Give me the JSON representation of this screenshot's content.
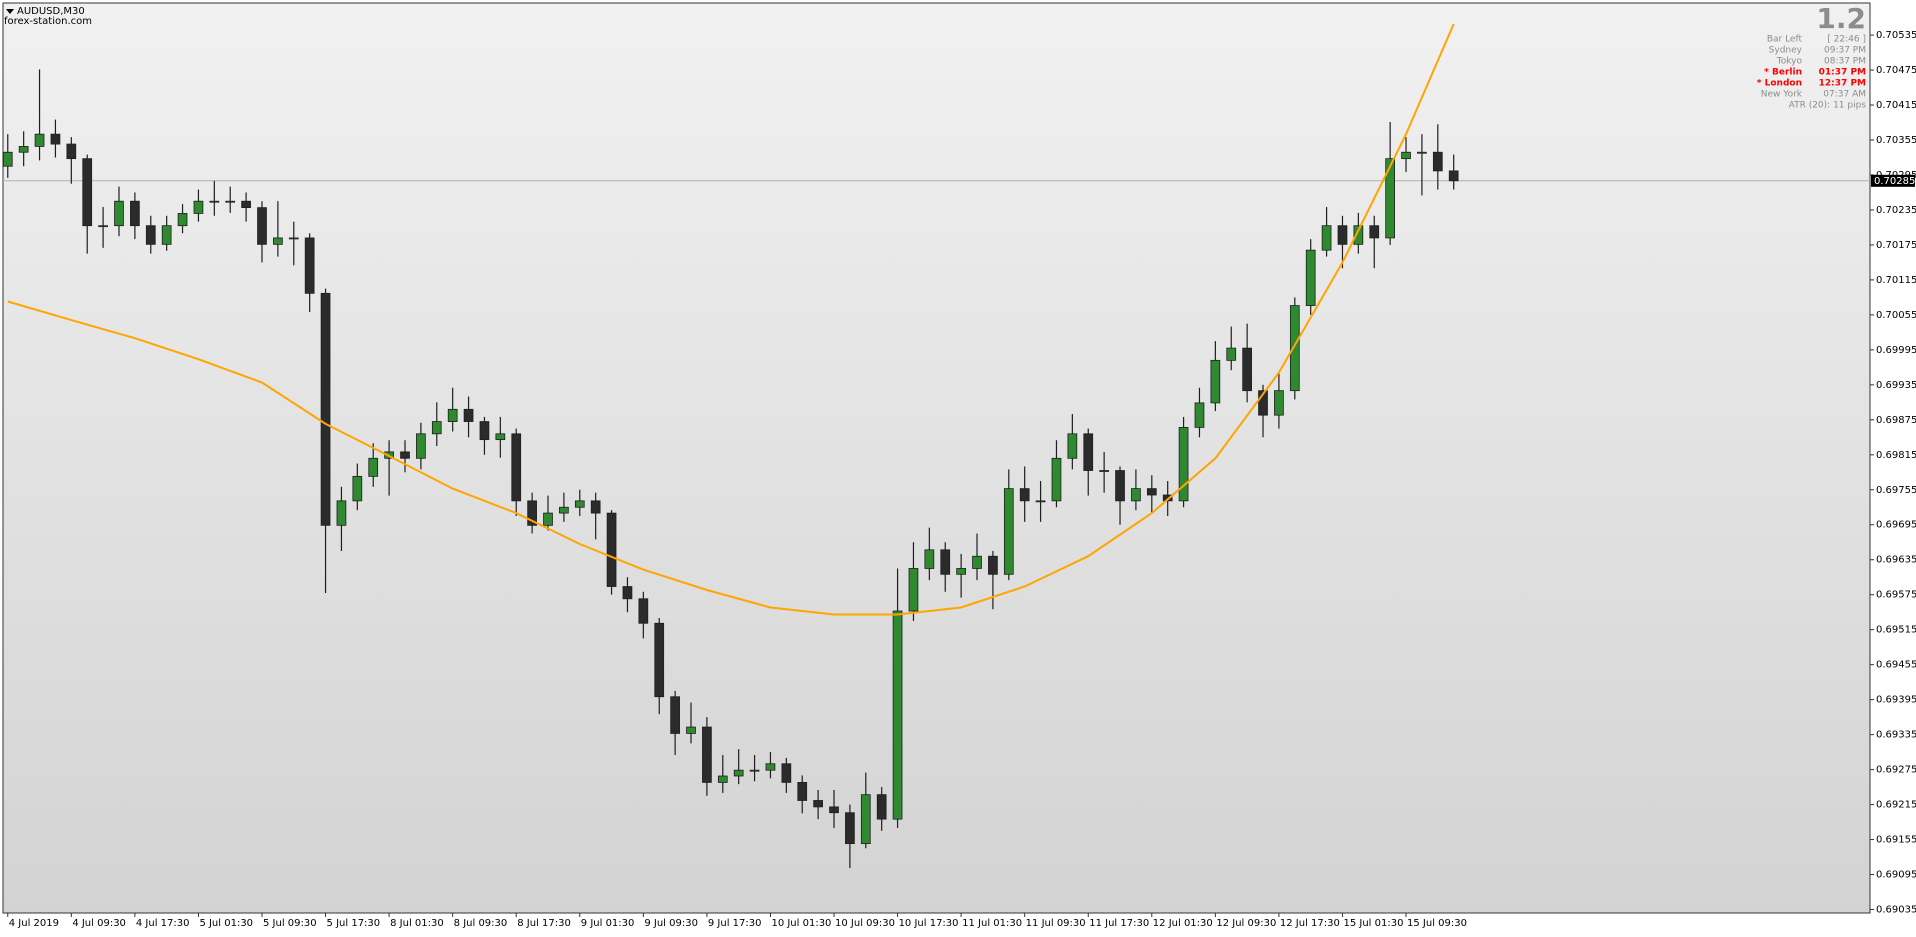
{
  "chart_data": {
    "type": "candlestick",
    "title": "AUDUSD,M30",
    "subtitle": "forex-station.com",
    "bull_color": "#2f8a2f",
    "bear_color": "#2b2b2b",
    "open": [
      0.7031,
      0.70334,
      0.70344,
      0.70365,
      0.70348,
      0.70323,
      0.70208,
      0.70208,
      0.7025,
      0.70208,
      0.70176,
      0.70208,
      0.70229,
      0.7025,
      0.7025,
      0.7025,
      0.70239,
      0.70176,
      0.70187,
      0.70187,
      0.70092,
      0.69694,
      0.69736,
      0.69778,
      0.69809,
      0.6982,
      0.69809,
      0.69851,
      0.69872,
      0.69893,
      0.69872,
      0.69841,
      0.69851,
      0.69736,
      0.69694,
      0.69715,
      0.69725,
      0.69736,
      0.69715,
      0.69589,
      0.69568,
      0.69526,
      0.694,
      0.69337,
      0.69348,
      0.69253,
      0.69264,
      0.69274,
      0.69274,
      0.69285,
      0.69253,
      0.69222,
      0.69211,
      0.69201,
      0.69148,
      0.69232,
      0.6919,
      0.69547,
      0.6962,
      0.69652,
      0.6961,
      0.6962,
      0.69641,
      0.6961,
      0.69757,
      0.69736,
      0.69736,
      0.69809,
      0.69851,
      0.69788,
      0.69788,
      0.69736,
      0.69757,
      0.69746,
      0.69736,
      0.69862,
      0.69904,
      0.69977,
      0.69998,
      0.69925,
      0.69883,
      0.69925,
      0.70071,
      0.70166,
      0.70208,
      0.70176,
      0.70208,
      0.70187,
      0.70323,
      0.70334,
      0.70334,
      0.70302
    ],
    "high": [
      0.70365,
      0.7037,
      0.70476,
      0.7039,
      0.7036,
      0.7033,
      0.7024,
      0.70275,
      0.70265,
      0.70225,
      0.70225,
      0.70245,
      0.7027,
      0.70285,
      0.70275,
      0.70265,
      0.7025,
      0.7025,
      0.70215,
      0.70195,
      0.701,
      0.6976,
      0.698,
      0.69835,
      0.6984,
      0.6984,
      0.6987,
      0.69905,
      0.6993,
      0.69915,
      0.6988,
      0.6988,
      0.6986,
      0.6975,
      0.69745,
      0.6975,
      0.69755,
      0.6975,
      0.6972,
      0.69605,
      0.6958,
      0.69535,
      0.6941,
      0.6939,
      0.69365,
      0.693,
      0.6931,
      0.693,
      0.69305,
      0.69295,
      0.69265,
      0.6924,
      0.6924,
      0.69215,
      0.6927,
      0.69245,
      0.6962,
      0.69665,
      0.6969,
      0.69665,
      0.69645,
      0.6968,
      0.6965,
      0.6979,
      0.69795,
      0.6977,
      0.6984,
      0.69885,
      0.6986,
      0.6982,
      0.69795,
      0.6979,
      0.6978,
      0.6977,
      0.6988,
      0.6993,
      0.7001,
      0.70035,
      0.7004,
      0.69935,
      0.69955,
      0.70085,
      0.70185,
      0.7024,
      0.70225,
      0.7023,
      0.70225,
      0.70386,
      0.7036,
      0.70365,
      0.70382,
      0.7033
    ],
    "low": [
      0.7029,
      0.7031,
      0.7032,
      0.70325,
      0.7028,
      0.7016,
      0.7017,
      0.7019,
      0.70185,
      0.7016,
      0.70165,
      0.70195,
      0.70215,
      0.70225,
      0.7023,
      0.70215,
      0.70145,
      0.70155,
      0.7014,
      0.7006,
      0.69578,
      0.6965,
      0.6972,
      0.6976,
      0.69745,
      0.69785,
      0.6979,
      0.6983,
      0.69855,
      0.69845,
      0.69815,
      0.6981,
      0.6971,
      0.6968,
      0.69685,
      0.697,
      0.6971,
      0.6967,
      0.69575,
      0.69545,
      0.695,
      0.6937,
      0.693,
      0.6932,
      0.6923,
      0.69235,
      0.6925,
      0.69255,
      0.6926,
      0.69235,
      0.692,
      0.6919,
      0.69175,
      0.69106,
      0.6914,
      0.6917,
      0.69175,
      0.6953,
      0.696,
      0.6958,
      0.6957,
      0.696,
      0.6955,
      0.696,
      0.697,
      0.697,
      0.69725,
      0.6979,
      0.69745,
      0.6975,
      0.69695,
      0.6972,
      0.69715,
      0.6971,
      0.69725,
      0.69845,
      0.6989,
      0.6996,
      0.69905,
      0.69845,
      0.6986,
      0.6991,
      0.70055,
      0.70155,
      0.70135,
      0.7016,
      0.70135,
      0.70175,
      0.703,
      0.7026,
      0.7027,
      0.7027
    ],
    "close": [
      0.70334,
      0.70344,
      0.70365,
      0.70348,
      0.70323,
      0.70208,
      0.70208,
      0.7025,
      0.70208,
      0.70176,
      0.70208,
      0.70229,
      0.7025,
      0.7025,
      0.7025,
      0.70239,
      0.70176,
      0.70187,
      0.70187,
      0.70092,
      0.69694,
      0.69736,
      0.69778,
      0.69809,
      0.6982,
      0.69809,
      0.69851,
      0.69872,
      0.69893,
      0.69872,
      0.69841,
      0.69851,
      0.69736,
      0.69694,
      0.69715,
      0.69725,
      0.69736,
      0.69715,
      0.69589,
      0.69568,
      0.69526,
      0.694,
      0.69337,
      0.69348,
      0.69253,
      0.69264,
      0.69274,
      0.69274,
      0.69285,
      0.69253,
      0.69222,
      0.69211,
      0.69201,
      0.69148,
      0.69232,
      0.6919,
      0.69547,
      0.6962,
      0.69652,
      0.6961,
      0.6962,
      0.69641,
      0.6961,
      0.69757,
      0.69736,
      0.69736,
      0.69809,
      0.69851,
      0.69788,
      0.69788,
      0.69736,
      0.69757,
      0.69746,
      0.69736,
      0.69862,
      0.69904,
      0.69977,
      0.69998,
      0.69925,
      0.69883,
      0.69925,
      0.70071,
      0.70166,
      0.70208,
      0.70176,
      0.70208,
      0.70187,
      0.70323,
      0.70334,
      0.70334,
      0.70302,
      0.70285
    ],
    "curve": {
      "color": "#ffa500",
      "x": [
        0,
        4,
        8,
        12,
        16,
        20,
        24,
        28,
        32,
        36,
        40,
        44,
        48,
        52,
        56,
        60,
        64,
        68,
        72,
        76,
        80,
        84,
        88,
        91
      ],
      "values": [
        0.70078,
        0.70046,
        0.70015,
        0.69979,
        0.69939,
        0.69868,
        0.69813,
        0.69757,
        0.69715,
        0.69662,
        0.69618,
        0.69583,
        0.69553,
        0.69541,
        0.69541,
        0.69553,
        0.69589,
        0.69641,
        0.69715,
        0.69809,
        0.69956,
        0.70145,
        0.70365,
        0.70554
      ]
    },
    "price_line": 0.70285,
    "xlim": [
      -0.3,
      117.2
    ],
    "ylim": [
      0.69029,
      0.7059
    ],
    "xticks": [
      {
        "value": 0,
        "label": "4 Jul 2019"
      },
      {
        "value": 4,
        "label": "4 Jul 09:30"
      },
      {
        "value": 8,
        "label": "4 Jul 17:30"
      },
      {
        "value": 12,
        "label": "5 Jul 01:30"
      },
      {
        "value": 16,
        "label": "5 Jul 09:30"
      },
      {
        "value": 20,
        "label": "5 Jul 17:30"
      },
      {
        "value": 24,
        "label": "8 Jul 01:30"
      },
      {
        "value": 28,
        "label": "8 Jul 09:30"
      },
      {
        "value": 32,
        "label": "8 Jul 17:30"
      },
      {
        "value": 36,
        "label": "9 Jul 01:30"
      },
      {
        "value": 40,
        "label": "9 Jul 09:30"
      },
      {
        "value": 44,
        "label": "9 Jul 17:30"
      },
      {
        "value": 48,
        "label": "10 Jul 01:30"
      },
      {
        "value": 52,
        "label": "10 Jul 09:30"
      },
      {
        "value": 56,
        "label": "10 Jul 17:30"
      },
      {
        "value": 60,
        "label": "11 Jul 01:30"
      },
      {
        "value": 64,
        "label": "11 Jul 09:30"
      },
      {
        "value": 68,
        "label": "11 Jul 17:30"
      },
      {
        "value": 72,
        "label": "12 Jul 01:30"
      },
      {
        "value": 76,
        "label": "12 Jul 09:30"
      },
      {
        "value": 80,
        "label": "12 Jul 17:30"
      },
      {
        "value": 84,
        "label": "15 Jul 01:30"
      },
      {
        "value": 88,
        "label": "15 Jul 09:30"
      }
    ],
    "yticks": [
      0.70535,
      0.70475,
      0.70415,
      0.70355,
      0.70295,
      0.70235,
      0.70175,
      0.70115,
      0.70055,
      0.69995,
      0.69935,
      0.69875,
      0.69815,
      0.69755,
      0.69695,
      0.69635,
      0.69575,
      0.69515,
      0.69455,
      0.69395,
      0.69335,
      0.69275,
      0.69215,
      0.69155,
      0.69095,
      0.69035
    ],
    "info": {
      "big": "1.2",
      "rows": [
        {
          "label": "Bar Left",
          "value": "[ 22:46 ]",
          "color": "#8c8c8c"
        },
        {
          "label": "Sydney",
          "value": "09:37 PM",
          "color": "#8c8c8c"
        },
        {
          "label": "Tokyo",
          "value": "08:37 PM",
          "color": "#8c8c8c"
        },
        {
          "label": "* Berlin",
          "value": "01:37 PM",
          "color": "#ff0000"
        },
        {
          "label": "* London",
          "value": "12:37 PM",
          "color": "#ff0000"
        },
        {
          "label": "New York",
          "value": "07:37 AM",
          "color": "#8c8c8c"
        }
      ],
      "atr": "ATR (20): 11 pips"
    }
  }
}
